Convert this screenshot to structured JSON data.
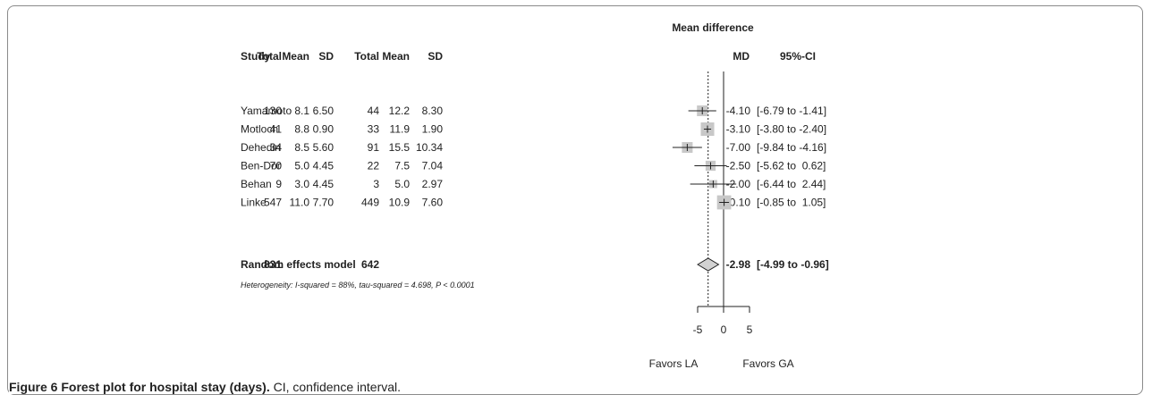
{
  "chart_data": {
    "type": "forest",
    "title": "Mean difference",
    "columns": {
      "study": "Study",
      "exp_total": "Total",
      "exp_mean": "Mean",
      "exp_sd": "SD",
      "ctl_total": "Total",
      "ctl_mean": "Mean",
      "ctl_sd": "SD",
      "md": "MD",
      "ci": "95%-CI"
    },
    "studies": [
      {
        "name": "Yamamoto",
        "exp_total": "130",
        "exp_mean": "8.1",
        "exp_sd": "6.50",
        "ctl_total": "44",
        "ctl_mean": "12.2",
        "ctl_sd": "8.30",
        "md": -4.1,
        "lower": -6.79,
        "upper": -1.41,
        "md_text": "-4.10",
        "ci_text": "[-6.79 to -1.41]",
        "weight": 0.8
      },
      {
        "name": "Motloch",
        "exp_total": "41",
        "exp_mean": "8.8",
        "exp_sd": "0.90",
        "ctl_total": "33",
        "ctl_mean": "11.9",
        "ctl_sd": "1.90",
        "md": -3.1,
        "lower": -3.8,
        "upper": -2.4,
        "md_text": "-3.10",
        "ci_text": "[-3.80 to -2.40]",
        "weight": 1.0
      },
      {
        "name": "Dehedin",
        "exp_total": "34",
        "exp_mean": "8.5",
        "exp_sd": "5.60",
        "ctl_total": "91",
        "ctl_mean": "15.5",
        "ctl_sd": "10.34",
        "md": -7.0,
        "lower": -9.84,
        "upper": -4.16,
        "md_text": "-7.00",
        "ci_text": "[-9.84 to -4.16]",
        "weight": 0.8
      },
      {
        "name": "Ben-Dor",
        "exp_total": "70",
        "exp_mean": "5.0",
        "exp_sd": "4.45",
        "ctl_total": "22",
        "ctl_mean": "7.5",
        "ctl_sd": "7.04",
        "md": -2.5,
        "lower": -5.62,
        "upper": 0.62,
        "md_text": "-2.50",
        "ci_text": "[-5.62 to  0.62]",
        "weight": 0.75
      },
      {
        "name": "Behan",
        "exp_total": "9",
        "exp_mean": "3.0",
        "exp_sd": "4.45",
        "ctl_total": "3",
        "ctl_mean": "5.0",
        "ctl_sd": "2.97",
        "md": -2.0,
        "lower": -6.44,
        "upper": 2.44,
        "md_text": "-2.00",
        "ci_text": "[-6.44 to  2.44]",
        "weight": 0.6
      },
      {
        "name": "Linke",
        "exp_total": "547",
        "exp_mean": "11.0",
        "exp_sd": "7.70",
        "ctl_total": "449",
        "ctl_mean": "10.9",
        "ctl_sd": "7.60",
        "md": 0.1,
        "lower": -0.85,
        "upper": 1.05,
        "md_text": "0.10",
        "ci_text": "[-0.85 to  1.05]",
        "weight": 1.05
      }
    ],
    "pooled": {
      "label": "Random effects model",
      "exp_total": "831",
      "ctl_total": "642",
      "md": -2.98,
      "lower": -4.99,
      "upper": -0.96,
      "md_text": "-2.98",
      "ci_text": "[-4.99 to -0.96]"
    },
    "heterogeneity": "Heterogeneity: I-squared = 88%, tau-squared = 4.698, P < 0.0001",
    "x_ticks": [
      -5,
      0,
      5
    ],
    "x_tick_labels": [
      "-5",
      "0",
      "5"
    ],
    "xlim": [
      -10,
      5
    ],
    "left_label": "Favors LA",
    "right_label": "Favors GA",
    "colors": {
      "box": "#c8c8c8",
      "line": "#222222",
      "diamond": "#d2d2d2"
    }
  },
  "caption": {
    "bold": "Figure 6 Forest plot for hospital stay (days).",
    "normal": " CI, confidence interval."
  }
}
